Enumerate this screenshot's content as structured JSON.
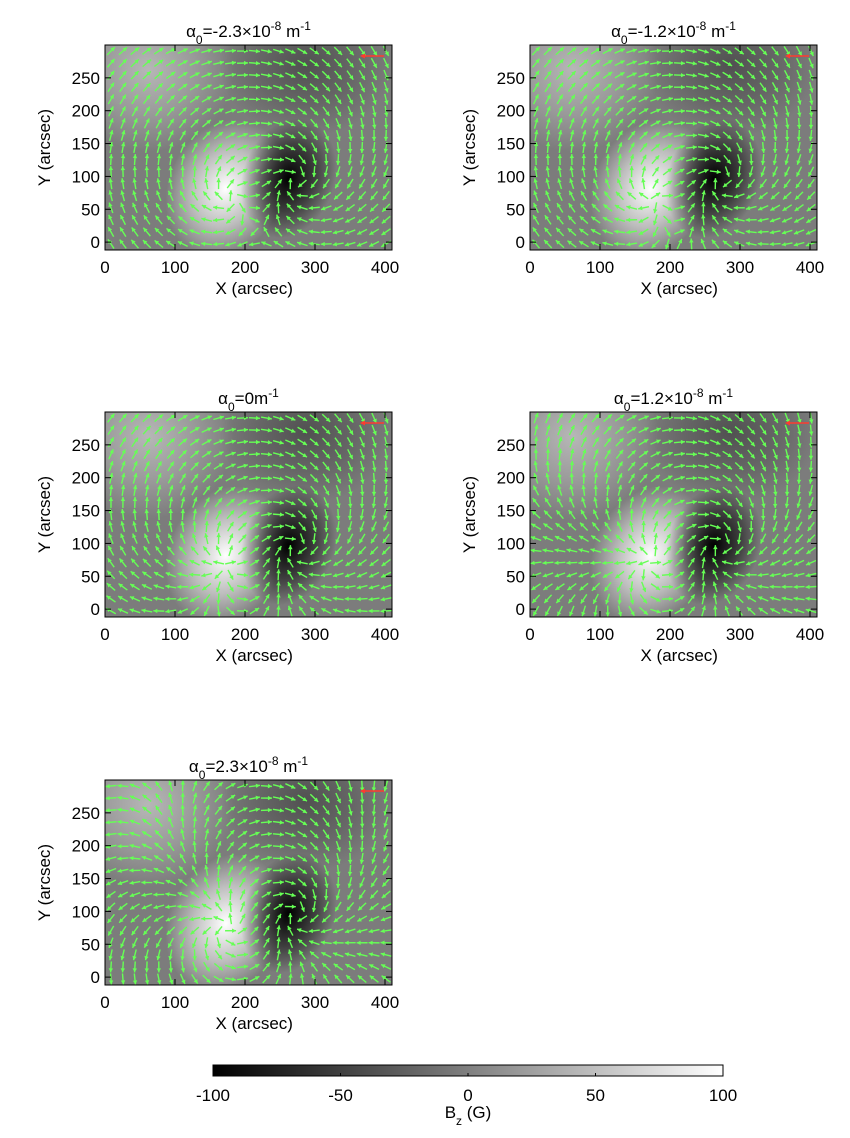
{
  "chart_data": [
    {
      "type": "vector_field",
      "title": [
        "α",
        "0",
        "=-2.3×10",
        "-8",
        " m",
        "-1"
      ],
      "xlabel": "X (arcsec)",
      "ylabel": "Y (arcsec)",
      "xlim": [
        0,
        410
      ],
      "ylim": [
        -12,
        300
      ],
      "xticks": [
        0,
        100,
        200,
        300,
        400
      ],
      "yticks": [
        0,
        50,
        100,
        150,
        200,
        250
      ],
      "color": "#66ff55"
    },
    {
      "type": "vector_field",
      "title": [
        "α",
        "0",
        "=-1.2×10",
        "-8",
        " m",
        "-1"
      ],
      "xlabel": "X (arcsec)",
      "ylabel": "Y (arcsec)",
      "xlim": [
        0,
        410
      ],
      "ylim": [
        -12,
        300
      ],
      "xticks": [
        0,
        100,
        200,
        300,
        400
      ],
      "yticks": [
        0,
        50,
        100,
        150,
        200,
        250
      ],
      "color": "#66ff55"
    },
    {
      "type": "vector_field",
      "title": [
        "α",
        "0",
        "=0m",
        "-1"
      ],
      "xlabel": "X (arcsec)",
      "ylabel": "Y (arcsec)",
      "xlim": [
        0,
        410
      ],
      "ylim": [
        -12,
        300
      ],
      "xticks": [
        0,
        100,
        200,
        300,
        400
      ],
      "yticks": [
        0,
        50,
        100,
        150,
        200,
        250
      ],
      "color": "#66ff55"
    },
    {
      "type": "vector_field",
      "title": [
        "α",
        "0",
        "=1.2×10",
        "-8",
        " m",
        "-1"
      ],
      "xlabel": "X (arcsec)",
      "ylabel": "Y (arcsec)",
      "xlim": [
        0,
        410
      ],
      "ylim": [
        -12,
        300
      ],
      "xticks": [
        0,
        100,
        200,
        300,
        400
      ],
      "yticks": [
        0,
        50,
        100,
        150,
        200,
        250
      ],
      "color": "#66ff55"
    },
    {
      "type": "vector_field",
      "title": [
        "α",
        "0",
        "=2.3×10",
        "-8",
        " m",
        "-1"
      ],
      "xlabel": "X (arcsec)",
      "ylabel": "Y (arcsec)",
      "xlim": [
        0,
        410
      ],
      "ylim": [
        -12,
        300
      ],
      "xticks": [
        0,
        100,
        200,
        300,
        400
      ],
      "yticks": [
        0,
        50,
        100,
        150,
        200,
        250
      ],
      "color": "#66ff55"
    },
    {
      "type": "colorbar",
      "xlabel": [
        "B",
        "z",
        " (G)"
      ],
      "xlim": [
        -100,
        100
      ],
      "xticks": [
        -100,
        -50,
        0,
        50,
        100
      ],
      "colors": [
        "#000000",
        "#ffffff"
      ]
    }
  ]
}
